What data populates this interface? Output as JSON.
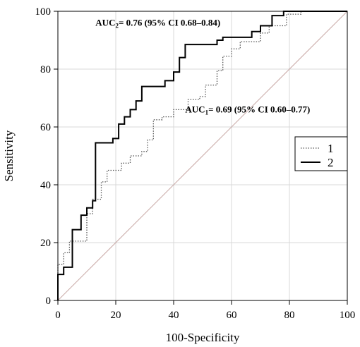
{
  "chart_data": {
    "type": "line",
    "title": "",
    "xlabel": "100-Specificity",
    "ylabel": "Sensitivity",
    "xlim": [
      0,
      100
    ],
    "ylim": [
      0,
      100
    ],
    "xticks": [
      "0",
      "20",
      "40",
      "60",
      "80",
      "100"
    ],
    "yticks": [
      "0",
      "20",
      "40",
      "60",
      "80",
      "100"
    ],
    "grid": true,
    "legend_position": "right",
    "reference_line": {
      "points": [
        [
          0,
          0
        ],
        [
          100,
          100
        ]
      ],
      "color": "#c9a9a6"
    },
    "series": [
      {
        "name": "1",
        "style": "dotted",
        "color": "#555555",
        "points": [
          [
            0,
            0
          ],
          [
            0,
            12.5
          ],
          [
            2,
            12.5
          ],
          [
            2,
            16.5
          ],
          [
            4,
            16.5
          ],
          [
            4,
            20.5
          ],
          [
            10,
            20.5
          ],
          [
            10,
            30
          ],
          [
            12,
            30
          ],
          [
            12,
            35
          ],
          [
            15,
            35
          ],
          [
            15,
            41
          ],
          [
            17,
            41
          ],
          [
            17,
            45
          ],
          [
            22,
            45
          ],
          [
            22,
            47.5
          ],
          [
            25,
            47.5
          ],
          [
            25,
            50
          ],
          [
            29,
            50
          ],
          [
            29,
            51.5
          ],
          [
            31,
            51.5
          ],
          [
            31,
            55.5
          ],
          [
            33,
            55.5
          ],
          [
            33,
            62.5
          ],
          [
            36,
            62.5
          ],
          [
            36,
            63.5
          ],
          [
            40,
            63.5
          ],
          [
            40,
            66
          ],
          [
            45,
            66
          ],
          [
            45,
            69.5
          ],
          [
            49,
            69.5
          ],
          [
            49,
            70.5
          ],
          [
            51,
            70.5
          ],
          [
            51,
            74.5
          ],
          [
            55,
            74.5
          ],
          [
            55,
            79.5
          ],
          [
            57,
            79.5
          ],
          [
            57,
            84.5
          ],
          [
            60,
            84.5
          ],
          [
            60,
            87
          ],
          [
            63,
            87
          ],
          [
            63,
            89.5
          ],
          [
            70,
            89.5
          ],
          [
            70,
            92.5
          ],
          [
            73,
            92.5
          ],
          [
            73,
            95
          ],
          [
            79,
            95
          ],
          [
            79,
            99
          ],
          [
            84,
            99
          ],
          [
            84,
            100
          ],
          [
            100,
            100
          ]
        ]
      },
      {
        "name": "2",
        "style": "solid",
        "color": "#000000",
        "points": [
          [
            0,
            0
          ],
          [
            0,
            9
          ],
          [
            2,
            9
          ],
          [
            2,
            11.5
          ],
          [
            5,
            11.5
          ],
          [
            5,
            24.5
          ],
          [
            8,
            24.5
          ],
          [
            8,
            29.5
          ],
          [
            10,
            29.5
          ],
          [
            10,
            32
          ],
          [
            12,
            32
          ],
          [
            12,
            34.5
          ],
          [
            13,
            34.5
          ],
          [
            13,
            54.5
          ],
          [
            19,
            54.5
          ],
          [
            19,
            56
          ],
          [
            21,
            56
          ],
          [
            21,
            61
          ],
          [
            23,
            61
          ],
          [
            23,
            63.5
          ],
          [
            25,
            63.5
          ],
          [
            25,
            66
          ],
          [
            27,
            66
          ],
          [
            27,
            69
          ],
          [
            29,
            69
          ],
          [
            29,
            74
          ],
          [
            37,
            74
          ],
          [
            37,
            76
          ],
          [
            40,
            76
          ],
          [
            40,
            79
          ],
          [
            42,
            79
          ],
          [
            42,
            84
          ],
          [
            44,
            84
          ],
          [
            44,
            88.5
          ],
          [
            55,
            88.5
          ],
          [
            55,
            90
          ],
          [
            57,
            90
          ],
          [
            57,
            91
          ],
          [
            67,
            91
          ],
          [
            67,
            93
          ],
          [
            70,
            93
          ],
          [
            70,
            95
          ],
          [
            74,
            95
          ],
          [
            74,
            98.5
          ],
          [
            78,
            98.5
          ],
          [
            78,
            100
          ],
          [
            100,
            100
          ]
        ]
      }
    ],
    "annotations": [
      {
        "label_prefix": "AUC",
        "subscript": "2",
        "text": "= 0.76 (95% CI 0.68–0.84)",
        "x": 13,
        "y": 95
      },
      {
        "label_prefix": "AUC",
        "subscript": "1",
        "text": "= 0.69 (95% CI 0.60–0.77)",
        "x": 44,
        "y": 65
      }
    ]
  }
}
